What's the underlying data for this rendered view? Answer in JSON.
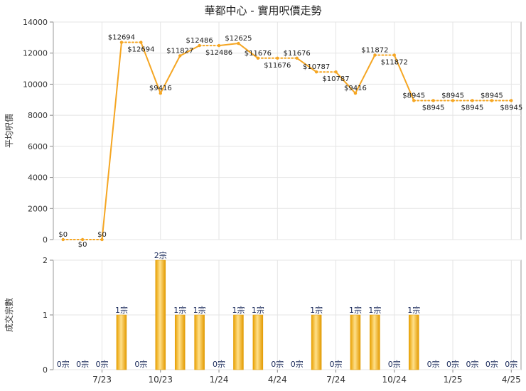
{
  "title": "華都中心 - 實用呎價走勢",
  "chart_data": [
    {
      "type": "line",
      "ylabel": "平均呎價",
      "ylim": [
        0,
        14000
      ],
      "yticks": [
        "0",
        "2000",
        "4000",
        "6000",
        "8000",
        "10000",
        "12000",
        "14000"
      ],
      "color": "#f5a623",
      "points": [
        {
          "i": 0,
          "value": 0,
          "label": "$0"
        },
        {
          "i": 1,
          "value": 0,
          "label": "$0"
        },
        {
          "i": 2,
          "value": 0,
          "label": "$0"
        },
        {
          "i": 3,
          "value": 12694,
          "label": "$12694"
        },
        {
          "i": 4,
          "value": 12694,
          "label": "$12694"
        },
        {
          "i": 5,
          "value": 9416,
          "label": "$9416"
        },
        {
          "i": 6,
          "value": 11827,
          "label": "$11827"
        },
        {
          "i": 7,
          "value": 12486,
          "label": "$12486"
        },
        {
          "i": 8,
          "value": 12486,
          "label": "$12486"
        },
        {
          "i": 9,
          "value": 12625,
          "label": "$12625"
        },
        {
          "i": 10,
          "value": 11676,
          "label": "$11676"
        },
        {
          "i": 11,
          "value": 11676,
          "label": "$11676"
        },
        {
          "i": 12,
          "value": 11676,
          "label": "$11676"
        },
        {
          "i": 13,
          "value": 10787,
          "label": "$10787"
        },
        {
          "i": 14,
          "value": 10787,
          "label": "$10787"
        },
        {
          "i": 15,
          "value": 9416,
          "label": "$9416"
        },
        {
          "i": 16,
          "value": 11872,
          "label": "$11872"
        },
        {
          "i": 17,
          "value": 11872,
          "label": "$11872"
        },
        {
          "i": 18,
          "value": 8945,
          "label": "$8945"
        },
        {
          "i": 19,
          "value": 8945,
          "label": "$8945"
        },
        {
          "i": 20,
          "value": 8945,
          "label": "$8945"
        },
        {
          "i": 21,
          "value": 8945,
          "label": "$8945"
        },
        {
          "i": 22,
          "value": 8945,
          "label": "$8945"
        },
        {
          "i": 23,
          "value": 8945,
          "label": "$8945"
        }
      ]
    },
    {
      "type": "bar",
      "ylabel": "成交宗數",
      "ylim": [
        0,
        2
      ],
      "yticks": [
        "0",
        "1",
        "2"
      ],
      "values": [
        0,
        0,
        0,
        1,
        0,
        2,
        1,
        1,
        0,
        1,
        1,
        0,
        0,
        1,
        0,
        1,
        1,
        0,
        1,
        0,
        0,
        0,
        0,
        0
      ],
      "labels": [
        "0宗",
        "0宗",
        "0宗",
        "1宗",
        "0宗",
        "2宗",
        "1宗",
        "1宗",
        "0宗",
        "1宗",
        "1宗",
        "0宗",
        "0宗",
        "1宗",
        "0宗",
        "1宗",
        "1宗",
        "0宗",
        "1宗",
        "0宗",
        "0宗",
        "0宗",
        "0宗",
        "0宗"
      ],
      "x_ticks": [
        {
          "i": 2,
          "label": "7/23"
        },
        {
          "i": 5,
          "label": "10/23"
        },
        {
          "i": 8,
          "label": "1/24"
        },
        {
          "i": 11,
          "label": "4/24"
        },
        {
          "i": 14,
          "label": "7/24"
        },
        {
          "i": 17,
          "label": "10/24"
        },
        {
          "i": 20,
          "label": "1/25"
        },
        {
          "i": 23,
          "label": "4/25"
        }
      ]
    }
  ]
}
